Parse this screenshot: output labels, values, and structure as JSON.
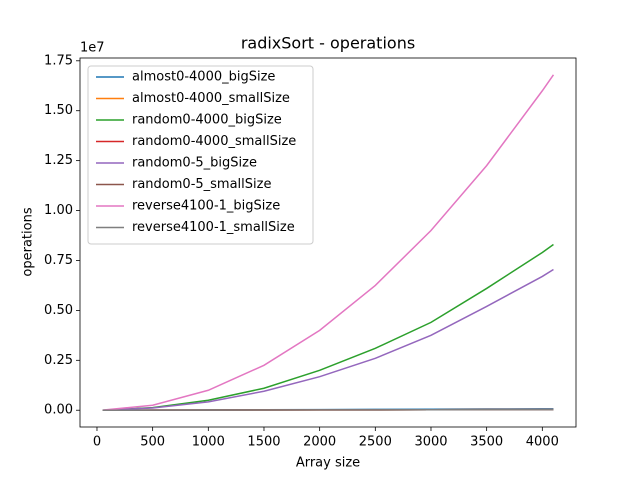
{
  "chart_data": {
    "type": "line",
    "title": "radixSort - operations",
    "xlabel": "Array size",
    "ylabel": "operations",
    "y_offset_label": "1e7",
    "x": [
      50,
      500,
      1000,
      1500,
      2000,
      2500,
      3000,
      3500,
      4000,
      4100
    ],
    "series": [
      {
        "name": "almost0-4000_bigSize",
        "color": "#1f77b4",
        "values": [
          0.0001,
          0.0008,
          0.0016,
          0.0025,
          0.0033,
          0.0042,
          0.005,
          0.006,
          0.0068,
          0.007
        ]
      },
      {
        "name": "almost0-4000_smallSize",
        "color": "#ff7f0e",
        "values": [
          0.0,
          0.0004,
          0.0008,
          0.0012,
          0.0016,
          0.002,
          0.0024,
          0.0028,
          0.0032,
          0.0033
        ]
      },
      {
        "name": "random0-4000_bigSize",
        "color": "#2ca02c",
        "values": [
          0.0001,
          0.013,
          0.05,
          0.11,
          0.2,
          0.31,
          0.44,
          0.61,
          0.79,
          0.83
        ]
      },
      {
        "name": "random0-4000_smallSize",
        "color": "#d62728",
        "values": [
          0.0,
          0.0004,
          0.0008,
          0.0012,
          0.0016,
          0.002,
          0.0024,
          0.0028,
          0.0032,
          0.0033
        ]
      },
      {
        "name": "random0-5_bigSize",
        "color": "#9467bd",
        "values": [
          0.0001,
          0.011,
          0.042,
          0.095,
          0.168,
          0.26,
          0.375,
          0.52,
          0.67,
          0.705
        ]
      },
      {
        "name": "random0-5_smallSize",
        "color": "#8c564b",
        "values": [
          0.0,
          0.0004,
          0.0008,
          0.0012,
          0.0016,
          0.002,
          0.0024,
          0.0028,
          0.0032,
          0.0033
        ]
      },
      {
        "name": "reverse4100-1_bigSize",
        "color": "#e377c2",
        "values": [
          0.0003,
          0.025,
          0.1,
          0.225,
          0.4,
          0.625,
          0.9,
          1.225,
          1.6,
          1.68
        ]
      },
      {
        "name": "reverse4100-1_smallSize",
        "color": "#7f7f7f",
        "values": [
          0.0,
          0.0004,
          0.0008,
          0.0012,
          0.0016,
          0.002,
          0.0024,
          0.0028,
          0.0032,
          0.0033
        ]
      }
    ],
    "xlim": [
      -152.5,
      4302.5
    ],
    "xticks": [
      0,
      500,
      1000,
      1500,
      2000,
      2500,
      3000,
      3500,
      4000
    ],
    "ylim": [
      -0.084,
      1.764
    ],
    "yticks": [
      {
        "value": 0,
        "label": "0.00"
      },
      {
        "value": 0.25,
        "label": "0.25"
      },
      {
        "value": 0.5,
        "label": "0.50"
      },
      {
        "value": 0.75,
        "label": "0.75"
      },
      {
        "value": 1.0,
        "label": "1.00"
      },
      {
        "value": 1.25,
        "label": "1.25"
      },
      {
        "value": 1.5,
        "label": "1.50"
      },
      {
        "value": 1.75,
        "label": "1.75"
      }
    ],
    "legend": "upper left",
    "grid": false
  }
}
